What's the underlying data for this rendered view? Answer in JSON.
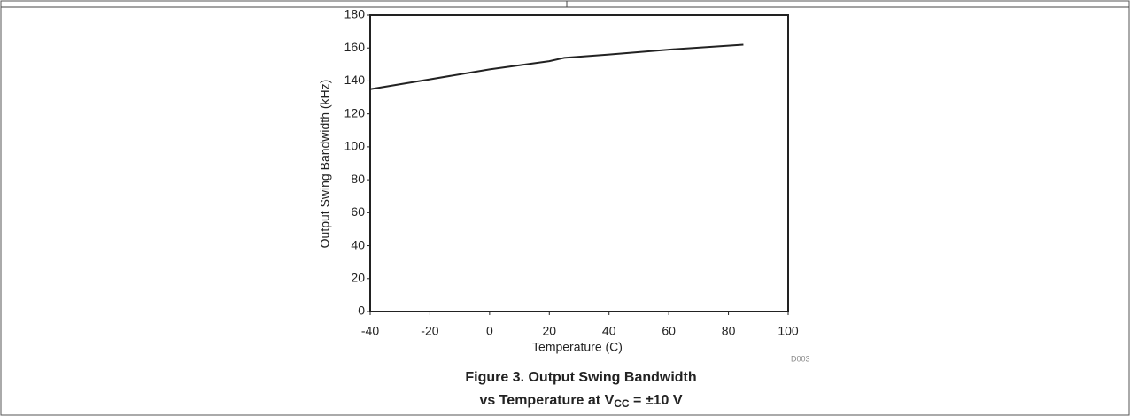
{
  "chart_data": {
    "type": "line",
    "title": [
      "Figure 3. Output Swing Bandwidth",
      "vs Temperature at V",
      "CC",
      " = ±10 V"
    ],
    "x_label": "Temperature (C)",
    "y_label": "Output Swing Bandwidth (kHz)",
    "annotation": "D003",
    "series": [
      {
        "color": "#222222",
        "x": [
          -40,
          -20,
          0,
          20,
          25,
          40,
          60,
          85
        ],
        "values": [
          135,
          141,
          147,
          152,
          154,
          156,
          159,
          162
        ]
      }
    ],
    "xlim": [
      -40,
      100
    ],
    "xticks": [
      -40,
      -20,
      0,
      20,
      40,
      60,
      80,
      100
    ],
    "ylim": [
      0,
      180
    ],
    "yticks": [
      0,
      20,
      40,
      60,
      80,
      100,
      120,
      140,
      160,
      180
    ],
    "grid": false
  }
}
